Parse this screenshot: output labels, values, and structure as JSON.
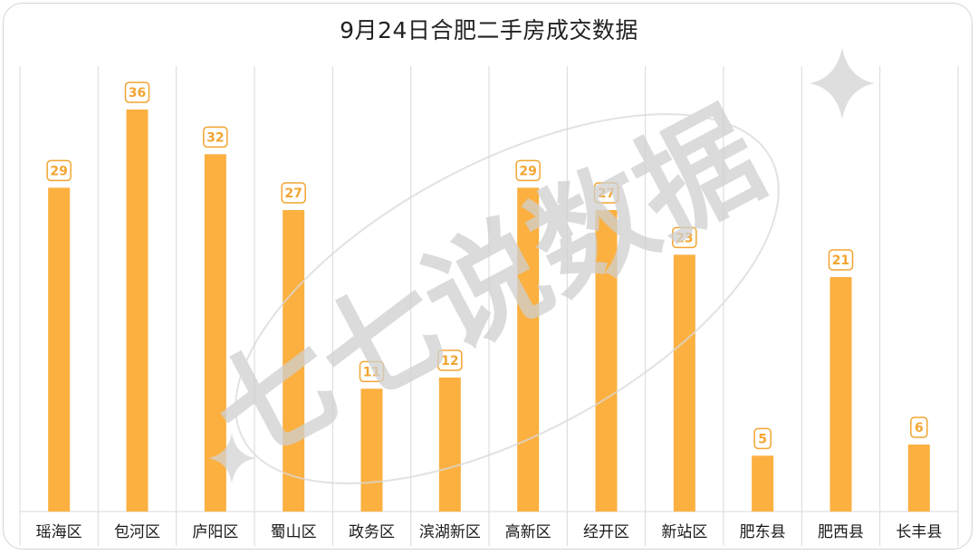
{
  "chart_data": {
    "type": "bar",
    "title": "9月24日合肥二手房成交数据",
    "categories": [
      "瑶海区",
      "包河区",
      "庐阳区",
      "蜀山区",
      "政务区",
      "滨湖新区",
      "高新区",
      "经开区",
      "新站区",
      "肥东县",
      "肥西县",
      "长丰县"
    ],
    "values": [
      29,
      36,
      32,
      27,
      11,
      12,
      29,
      27,
      23,
      5,
      21,
      6
    ],
    "xlabel": "",
    "ylabel": "",
    "ylim": [
      0,
      36
    ],
    "grid": "vertical separators between categories",
    "legend": "none",
    "bar_color": "#fbb040",
    "label_color": "#f2a531"
  },
  "watermark": {
    "text": "七七说数据",
    "color": "#cfcfcf"
  }
}
